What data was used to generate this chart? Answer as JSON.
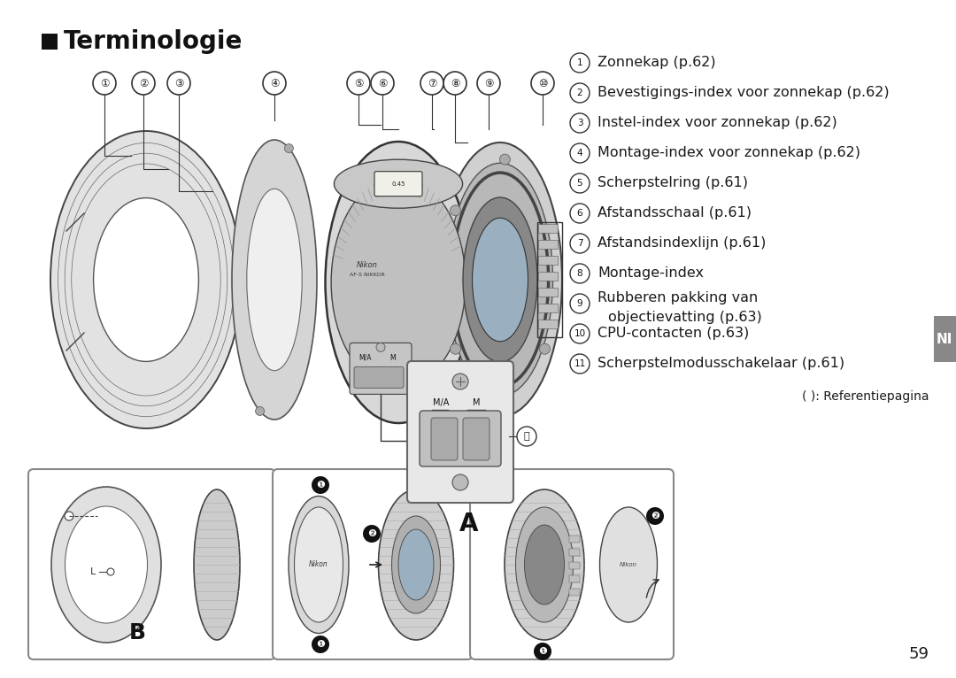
{
  "title": "Terminologie",
  "background_color": "#ffffff",
  "text_color": "#1a1a1a",
  "page_number": "59",
  "tab_color": "#888888",
  "tab_text": "NI",
  "items": [
    {
      "num": "1",
      "text": "Zonnekap (p.62)"
    },
    {
      "num": "2",
      "text": "Bevestigings-index voor zonnekap (p.62)"
    },
    {
      "num": "3",
      "text": "Instel-index voor zonnekap (p.62)"
    },
    {
      "num": "4",
      "text": "Montage-index voor zonnekap (p.62)"
    },
    {
      "num": "5",
      "text": "Scherpstelring (p.61)"
    },
    {
      "num": "6",
      "text": "Afstandsschaal (p.61)"
    },
    {
      "num": "7",
      "text": "Afstandsindexlijn (p.61)"
    },
    {
      "num": "8",
      "text": "Montage-index"
    },
    {
      "num": "9",
      "text": "Rubberen pakking van\nobjectievatting (p.63)"
    },
    {
      "num": "10",
      "text": "CPU-contacten (p.63)"
    },
    {
      "num": "11",
      "text": "Scherpstelmodusschakelaar (p.61)"
    }
  ],
  "ref_text": "( ): Referentiepagina",
  "label_A": "A",
  "label_B": "B",
  "font_size_title": 20,
  "font_size_items": 11.5,
  "font_size_ref": 10,
  "font_size_page": 13
}
